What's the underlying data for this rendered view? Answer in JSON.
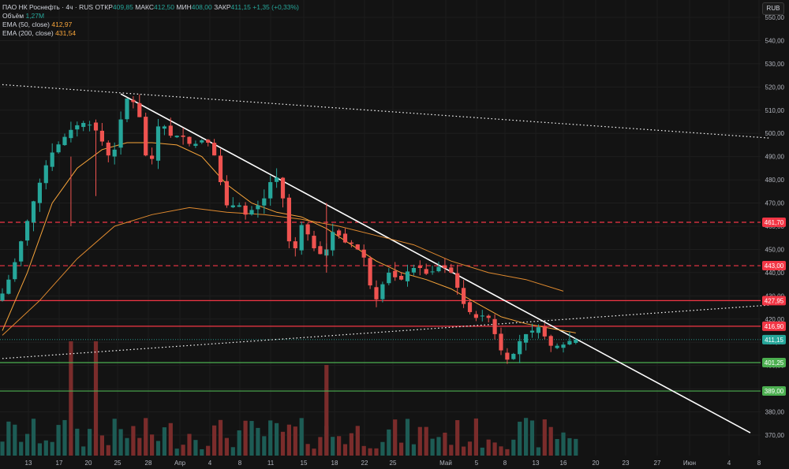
{
  "legend": {
    "title": "ПАО НК Роснефть · 4ч · RUS",
    "open_label": "ОТКР",
    "open_value": "409,85",
    "high_label": "МАКС",
    "high_value": "412,50",
    "low_label": "МИН",
    "low_value": "408,00",
    "close_label": "ЗАКР",
    "close_value": "411,15",
    "change": "+1,35 (+0,33%)",
    "volume_label": "Объём",
    "volume_value": "1,27M",
    "ema50_label": "EMA (50, close)",
    "ema50_value": "412,97",
    "ema200_label": "EMA (200, close)",
    "ema200_value": "431,54"
  },
  "currency_button": "RUB",
  "colors": {
    "background": "#131313",
    "up": "#26a69a",
    "down": "#ef5350",
    "ema50": "#f7a43a",
    "ema200": "#e08a2f",
    "support_green": "#4caf50",
    "resistance_red": "#f23645",
    "trendline": "#ffffff"
  },
  "chart_data": {
    "type": "candlestick",
    "instrument": "ПАО НК Роснефть",
    "timeframe": "4ч",
    "y_ticks": [
      "550,00",
      "540,00",
      "530,00",
      "520,00",
      "510,00",
      "500,00",
      "490,00",
      "480,00",
      "470,00",
      "460,00",
      "450,00",
      "440,00",
      "430,00",
      "420,00",
      "410,00",
      "400,00",
      "390,00",
      "380,00",
      "370,00"
    ],
    "y_range": [
      365,
      553
    ],
    "x_ticks": [
      "13",
      "17",
      "20",
      "25",
      "28",
      "Апр",
      "4",
      "8",
      "11",
      "15",
      "18",
      "22",
      "25",
      "Май",
      "5",
      "8",
      "13",
      "16",
      "20",
      "23",
      "27",
      "Июн",
      "4",
      "8"
    ],
    "price_path": [
      [
        0,
        428
      ],
      [
        2,
        440
      ],
      [
        4,
        458
      ],
      [
        6,
        475
      ],
      [
        8,
        490
      ],
      [
        10,
        497
      ],
      [
        12,
        503
      ],
      [
        14,
        505
      ],
      [
        16,
        500
      ],
      [
        17,
        493
      ],
      [
        18,
        488
      ],
      [
        19,
        498
      ],
      [
        20,
        514
      ],
      [
        21,
        516
      ],
      [
        22,
        511
      ],
      [
        23,
        503
      ],
      [
        24,
        478
      ],
      [
        25,
        500
      ],
      [
        26,
        506
      ],
      [
        27,
        500
      ],
      [
        28,
        498
      ],
      [
        29,
        500
      ],
      [
        30,
        497
      ],
      [
        31,
        494
      ],
      [
        32,
        497
      ],
      [
        33,
        497
      ],
      [
        34,
        495
      ],
      [
        35,
        486
      ],
      [
        36,
        472
      ],
      [
        37,
        466
      ],
      [
        38,
        472
      ],
      [
        39,
        466
      ],
      [
        40,
        464
      ],
      [
        41,
        470
      ],
      [
        42,
        468
      ],
      [
        43,
        476
      ],
      [
        44,
        482
      ],
      [
        45,
        480
      ],
      [
        46,
        464
      ],
      [
        47,
        443
      ],
      [
        48,
        458
      ],
      [
        49,
        463
      ],
      [
        50,
        450
      ],
      [
        51,
        451
      ],
      [
        52,
        445
      ],
      [
        53,
        455
      ],
      [
        54,
        460
      ],
      [
        55,
        452
      ],
      [
        56,
        454
      ],
      [
        57,
        451
      ],
      [
        58,
        449
      ],
      [
        59,
        444
      ],
      [
        60,
        425
      ],
      [
        61,
        432
      ],
      [
        62,
        438
      ],
      [
        63,
        442
      ],
      [
        64,
        434
      ],
      [
        65,
        440
      ],
      [
        66,
        441
      ],
      [
        67,
        443
      ],
      [
        68,
        441
      ],
      [
        69,
        438
      ],
      [
        70,
        443
      ],
      [
        71,
        442
      ],
      [
        72,
        442
      ],
      [
        73,
        438
      ],
      [
        74,
        429
      ],
      [
        75,
        424
      ],
      [
        76,
        422
      ],
      [
        77,
        419
      ],
      [
        78,
        424
      ],
      [
        79,
        417
      ],
      [
        80,
        410
      ],
      [
        81,
        403
      ],
      [
        82,
        402
      ],
      [
        83,
        408
      ],
      [
        84,
        413
      ],
      [
        85,
        414
      ],
      [
        86,
        416
      ],
      [
        87,
        417
      ],
      [
        88,
        408
      ],
      [
        89,
        409
      ],
      [
        90,
        408
      ],
      [
        91,
        410
      ],
      [
        92,
        411.15
      ]
    ],
    "ema50": [
      [
        0,
        415
      ],
      [
        4,
        440
      ],
      [
        8,
        470
      ],
      [
        12,
        485
      ],
      [
        16,
        493
      ],
      [
        20,
        496
      ],
      [
        24,
        496
      ],
      [
        28,
        495
      ],
      [
        32,
        490
      ],
      [
        36,
        478
      ],
      [
        40,
        470
      ],
      [
        44,
        466
      ],
      [
        48,
        464
      ],
      [
        52,
        459
      ],
      [
        56,
        452
      ],
      [
        60,
        445
      ],
      [
        64,
        440
      ],
      [
        68,
        437
      ],
      [
        72,
        433
      ],
      [
        76,
        427
      ],
      [
        80,
        421
      ],
      [
        84,
        418
      ],
      [
        88,
        416
      ],
      [
        92,
        414
      ]
    ],
    "ema200": [
      [
        0,
        413
      ],
      [
        6,
        428
      ],
      [
        12,
        446
      ],
      [
        18,
        460
      ],
      [
        24,
        465
      ],
      [
        30,
        468
      ],
      [
        36,
        466
      ],
      [
        42,
        465
      ],
      [
        48,
        463
      ],
      [
        54,
        460
      ],
      [
        60,
        456
      ],
      [
        66,
        452
      ],
      [
        72,
        445
      ],
      [
        78,
        440
      ],
      [
        84,
        437
      ],
      [
        90,
        432
      ]
    ],
    "horizontal_levels": [
      {
        "price": 461.7,
        "label": "461,70",
        "style": "dashed",
        "color": "#f23645"
      },
      {
        "price": 443.0,
        "label": "443,00",
        "style": "dashed",
        "color": "#f23645"
      },
      {
        "price": 427.95,
        "label": "427,95",
        "style": "solid",
        "color": "#f23645"
      },
      {
        "price": 416.9,
        "label": "416,90",
        "style": "solid",
        "color": "#f23645"
      },
      {
        "price": 401.25,
        "label": "401,25",
        "style": "solid",
        "color": "#4caf50"
      },
      {
        "price": 389.0,
        "label": "389,00",
        "style": "solid",
        "color": "#4caf50"
      }
    ],
    "last_price": {
      "price": 411.15,
      "label": "411,15"
    },
    "trendlines": [
      {
        "style": "solid",
        "from": [
          19,
          517
        ],
        "to": [
          120,
          371
        ]
      },
      {
        "style": "dotted",
        "from": [
          0,
          521
        ],
        "to": [
          123,
          498
        ]
      },
      {
        "style": "dotted",
        "from": [
          0,
          403
        ],
        "to": [
          123,
          426
        ]
      }
    ]
  }
}
